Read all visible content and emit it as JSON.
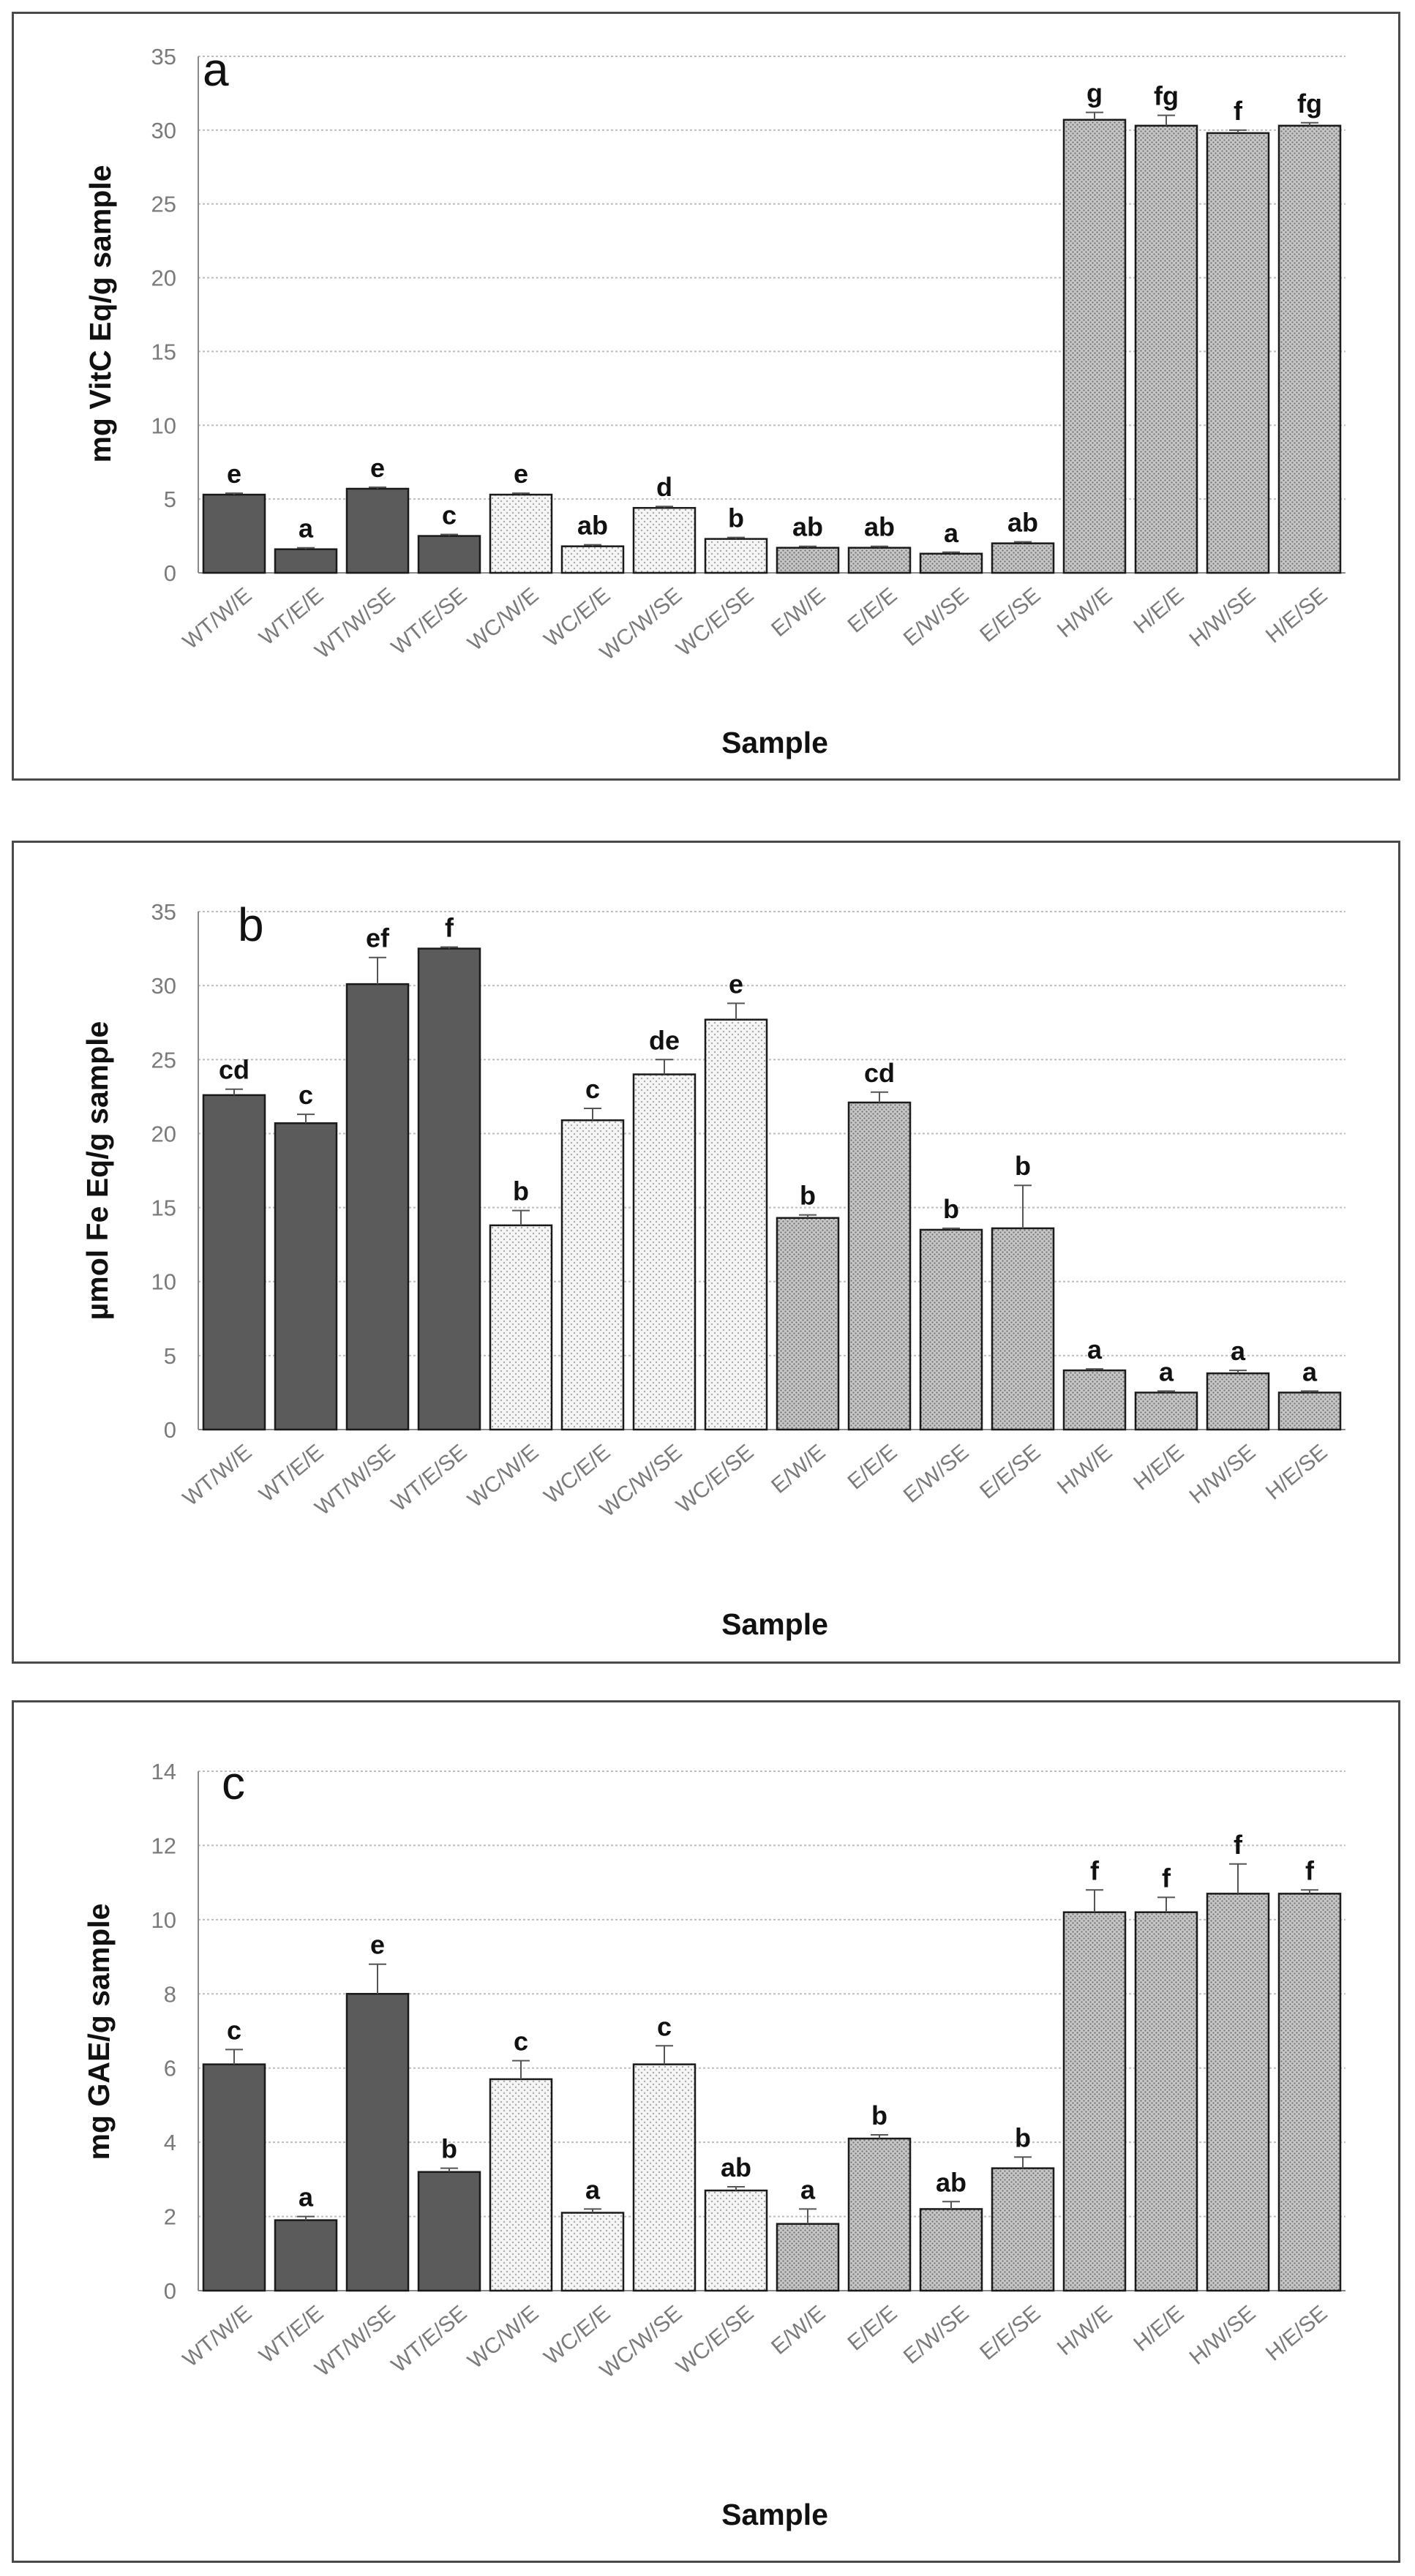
{
  "figure": {
    "categories": [
      "WT/W/E",
      "WT/E/E",
      "WT/W/SE",
      "WT/E/SE",
      "WC/W/E",
      "WC/E/E",
      "WC/W/SE",
      "WC/E/SE",
      "E/W/E",
      "E/E/E",
      "E/W/SE",
      "E/E/SE",
      "H/W/E",
      "H/E/E",
      "H/W/SE",
      "H/E/SE"
    ],
    "bar_group_fills": {
      "WT": "#5b5b5b",
      "WC": "#f4f4f4",
      "E": "#bdbdbd",
      "H": "#bdbdbd"
    },
    "bar_group_patterns": {
      "WT": "solid",
      "WC": "light-dots",
      "E": "dots",
      "H": "dots"
    }
  },
  "chart_data": [
    {
      "type": "bar",
      "panel_label": "a",
      "ylabel": "mg VitC Eq/g sample",
      "xlabel": "Sample",
      "ylim": [
        0,
        35
      ],
      "yticks": [
        "0",
        "5",
        "10",
        "15",
        "20",
        "25",
        "30",
        "35"
      ],
      "values": [
        5.3,
        1.6,
        5.7,
        2.5,
        5.3,
        1.8,
        4.4,
        2.3,
        1.7,
        1.7,
        1.3,
        2.0,
        30.7,
        30.3,
        29.8,
        30.3
      ],
      "errors": [
        0.1,
        0.1,
        0.1,
        0.1,
        0.1,
        0.1,
        0.1,
        0.1,
        0.1,
        0.1,
        0.1,
        0.1,
        0.5,
        0.7,
        0.2,
        0.2
      ],
      "letters": [
        "e",
        "a",
        "e",
        "c",
        "e",
        "ab",
        "d",
        "b",
        "ab",
        "ab",
        "a",
        "ab",
        "g",
        "fg",
        "f",
        "fg"
      ]
    },
    {
      "type": "bar",
      "panel_label": "b",
      "ylabel": "µmol Fe  Eq/g sample",
      "xlabel": "Sample",
      "ylim": [
        0,
        35
      ],
      "yticks": [
        "0",
        "5",
        "10",
        "15",
        "20",
        "25",
        "30",
        "35"
      ],
      "values": [
        22.6,
        20.7,
        30.1,
        32.5,
        13.8,
        20.9,
        24.0,
        27.7,
        14.3,
        22.1,
        13.5,
        13.6,
        4.0,
        2.5,
        3.8,
        2.5
      ],
      "errors": [
        0.4,
        0.6,
        1.8,
        0.1,
        1.0,
        0.8,
        1.0,
        1.1,
        0.2,
        0.7,
        0.1,
        2.9,
        0.1,
        0.1,
        0.2,
        0.1
      ],
      "letters": [
        "cd",
        "c",
        "ef",
        "f",
        "b",
        "c",
        "de",
        "e",
        "b",
        "cd",
        "b",
        "b",
        "a",
        "a",
        "a",
        "a"
      ]
    },
    {
      "type": "bar",
      "panel_label": "c",
      "ylabel": "mg GAE/g sample",
      "xlabel": "Sample",
      "ylim": [
        0,
        14
      ],
      "yticks": [
        "0",
        "2",
        "4",
        "6",
        "8",
        "10",
        "12",
        "14"
      ],
      "values": [
        6.1,
        1.9,
        8.0,
        3.2,
        5.7,
        2.1,
        6.1,
        2.7,
        1.8,
        4.1,
        2.2,
        3.3,
        10.2,
        10.2,
        10.7,
        10.7
      ],
      "errors": [
        0.4,
        0.1,
        0.8,
        0.1,
        0.5,
        0.1,
        0.5,
        0.1,
        0.4,
        0.1,
        0.2,
        0.3,
        0.6,
        0.4,
        0.8,
        0.1
      ],
      "letters": [
        "c",
        "a",
        "e",
        "b",
        "c",
        "a",
        "c",
        "ab",
        "a",
        "b",
        "ab",
        "b",
        "f",
        "f",
        "f",
        "f"
      ]
    }
  ]
}
